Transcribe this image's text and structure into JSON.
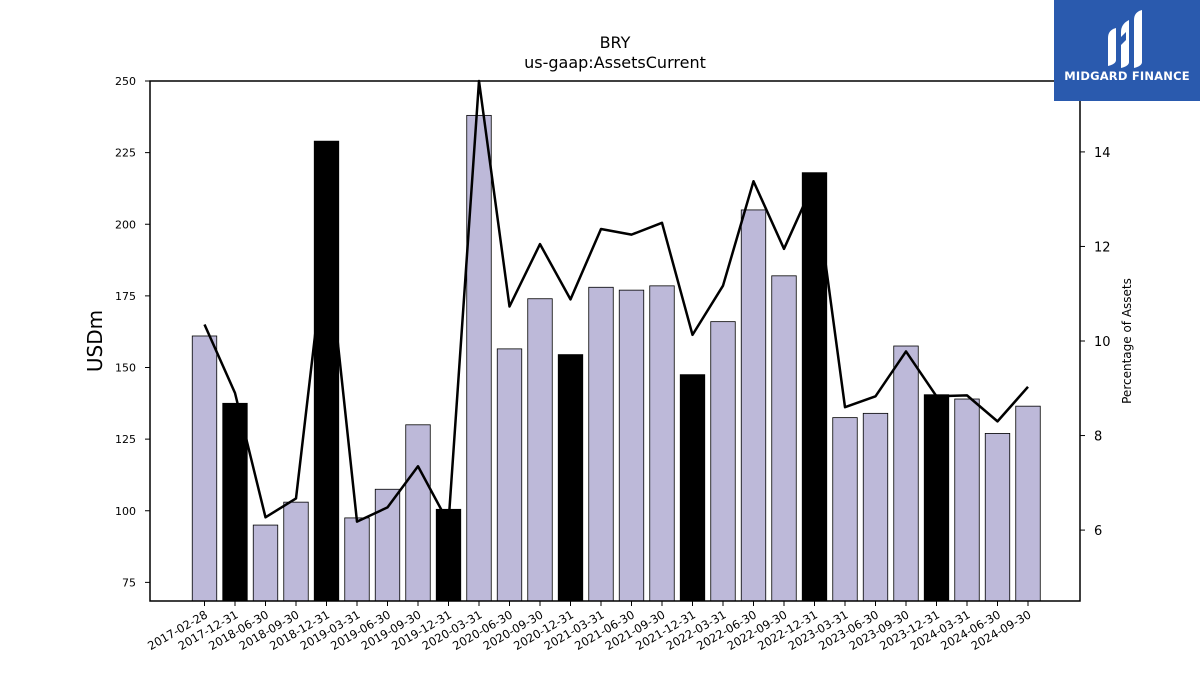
{
  "chart_data": {
    "type": "bar",
    "title": "BRY",
    "subtitle": "us-gaap:AssetsCurrent",
    "ylabel": "USDm",
    "y2label": "Percentage of Assets",
    "ylim": [
      68.5,
      250
    ],
    "y2lim": [
      4.5,
      15.5
    ],
    "yticks": [
      75,
      100,
      125,
      150,
      175,
      200,
      225,
      250
    ],
    "y2ticks": [
      6,
      8,
      10,
      12,
      14
    ],
    "categories": [
      "2017-02-28",
      "2017-12-31",
      "2018-06-30",
      "2018-09-30",
      "2018-12-31",
      "2019-03-31",
      "2019-06-30",
      "2019-09-30",
      "2019-12-31",
      "2020-03-31",
      "2020-06-30",
      "2020-09-30",
      "2020-12-31",
      "2021-03-31",
      "2021-06-30",
      "2021-09-30",
      "2021-12-31",
      "2022-03-31",
      "2022-06-30",
      "2022-09-30",
      "2022-12-31",
      "2023-03-31",
      "2023-06-30",
      "2023-09-30",
      "2023-12-31",
      "2024-03-31",
      "2024-06-30",
      "2024-09-30"
    ],
    "values": [
      161,
      137.5,
      95,
      103,
      229,
      97.5,
      107.5,
      130,
      100.5,
      238,
      156.5,
      174,
      154.5,
      178,
      177,
      178.5,
      147.5,
      166,
      205,
      182,
      218,
      132.5,
      134,
      157.5,
      140.5,
      139,
      127,
      136.5
    ],
    "annual": [
      false,
      true,
      false,
      false,
      true,
      false,
      false,
      false,
      true,
      false,
      false,
      false,
      true,
      false,
      false,
      false,
      true,
      false,
      false,
      false,
      true,
      false,
      false,
      false,
      true,
      false,
      false,
      false
    ],
    "pct_assets": [
      10.35,
      8.9,
      6.27,
      6.67,
      12.2,
      6.18,
      6.48,
      7.35,
      6.15,
      15.5,
      10.73,
      12.05,
      10.88,
      12.37,
      12.25,
      12.5,
      10.13,
      11.17,
      13.38,
      11.95,
      13.38,
      8.6,
      8.83,
      9.78,
      8.83,
      8.85,
      8.3,
      9.03
    ],
    "colors": {
      "quarter_bar": "#bdb9d9",
      "annual_bar": "#000000",
      "line": "#000000"
    },
    "grid": false,
    "legend": "none"
  },
  "logo": {
    "text": "MIDGARD FINANCE",
    "background": "#2a5aae"
  }
}
